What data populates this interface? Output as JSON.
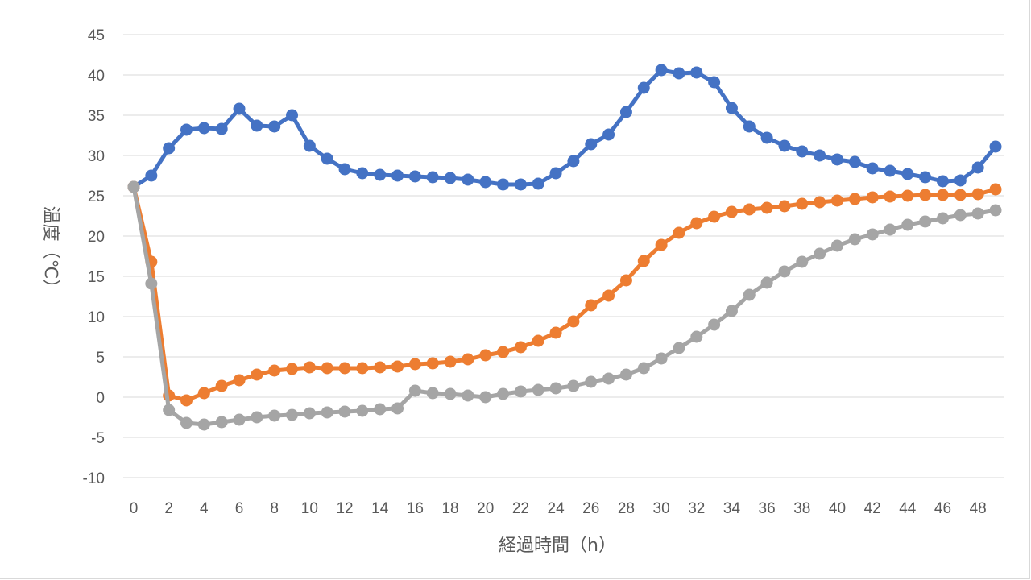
{
  "chart_data": {
    "type": "line",
    "title": "",
    "xlabel": "経過時間（h）",
    "ylabel": "温度（℃）",
    "xlim": [
      0,
      49
    ],
    "ylim": [
      -10,
      45
    ],
    "y_ticks": [
      -10,
      -5,
      0,
      5,
      10,
      15,
      20,
      25,
      30,
      35,
      40,
      45
    ],
    "x_ticks": [
      0,
      2,
      4,
      6,
      8,
      10,
      12,
      14,
      16,
      18,
      20,
      22,
      24,
      26,
      28,
      30,
      32,
      34,
      36,
      38,
      40,
      42,
      44,
      46,
      48
    ],
    "grid": true,
    "legend": "none",
    "x": [
      0,
      1,
      2,
      3,
      4,
      5,
      6,
      7,
      8,
      9,
      10,
      11,
      12,
      13,
      14,
      15,
      16,
      17,
      18,
      19,
      20,
      21,
      22,
      23,
      24,
      25,
      26,
      27,
      28,
      29,
      30,
      31,
      32,
      33,
      34,
      35,
      36,
      37,
      38,
      39,
      40,
      41,
      42,
      43,
      44,
      45,
      46,
      47,
      48,
      49
    ],
    "series": [
      {
        "color": "#4472c4",
        "values": [
          26.1,
          27.5,
          30.9,
          33.2,
          33.4,
          33.3,
          35.8,
          33.7,
          33.6,
          35.0,
          31.2,
          29.6,
          28.3,
          27.8,
          27.6,
          27.5,
          27.4,
          27.3,
          27.2,
          27.0,
          26.7,
          26.4,
          26.4,
          26.5,
          27.8,
          29.3,
          31.4,
          32.6,
          35.4,
          38.4,
          40.6,
          40.2,
          40.3,
          39.1,
          35.9,
          33.6,
          32.2,
          31.2,
          30.5,
          30.0,
          29.5,
          29.2,
          28.4,
          28.1,
          27.7,
          27.3,
          26.8,
          26.9,
          28.5,
          31.1
        ]
      },
      {
        "color": "#ed7d31",
        "values": [
          26.1,
          16.8,
          0.2,
          -0.4,
          0.5,
          1.4,
          2.1,
          2.8,
          3.3,
          3.5,
          3.7,
          3.6,
          3.6,
          3.6,
          3.7,
          3.8,
          4.1,
          4.2,
          4.4,
          4.7,
          5.2,
          5.6,
          6.2,
          7.0,
          8.0,
          9.4,
          11.4,
          12.6,
          14.5,
          16.9,
          18.9,
          20.4,
          21.6,
          22.4,
          23.0,
          23.3,
          23.5,
          23.7,
          24.0,
          24.2,
          24.4,
          24.6,
          24.8,
          24.9,
          25.0,
          25.1,
          25.1,
          25.1,
          25.2,
          25.8
        ]
      },
      {
        "color": "#a5a5a5",
        "values": [
          26.1,
          14.1,
          -1.6,
          -3.2,
          -3.4,
          -3.1,
          -2.8,
          -2.5,
          -2.3,
          -2.2,
          -2.0,
          -1.9,
          -1.8,
          -1.7,
          -1.5,
          -1.4,
          0.8,
          0.5,
          0.4,
          0.2,
          0.0,
          0.4,
          0.7,
          0.9,
          1.1,
          1.4,
          1.9,
          2.3,
          2.8,
          3.6,
          4.8,
          6.1,
          7.5,
          9.0,
          10.7,
          12.7,
          14.2,
          15.6,
          16.8,
          17.8,
          18.8,
          19.6,
          20.2,
          20.8,
          21.4,
          21.8,
          22.2,
          22.6,
          22.8,
          23.2
        ]
      }
    ]
  }
}
